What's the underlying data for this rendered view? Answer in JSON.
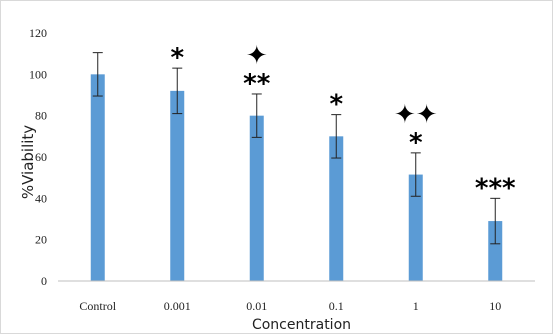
{
  "chart_data": {
    "type": "bar",
    "title": "",
    "xlabel": "Concentration",
    "ylabel": "%Viability",
    "ylim": [
      0,
      120
    ],
    "yticks": [
      0,
      20,
      40,
      60,
      80,
      100,
      120
    ],
    "categories": [
      "Control",
      "0.001",
      "0.01",
      "0.1",
      "1",
      "10"
    ],
    "values": [
      100,
      92,
      80,
      70,
      51.5,
      29
    ],
    "error": [
      10.5,
      11,
      10.5,
      10.5,
      10.5,
      11
    ],
    "significance": [
      "",
      "*",
      "**",
      "*",
      "*",
      "***"
    ],
    "cross_marks": [
      "",
      "",
      "✦",
      "",
      "✦✦",
      ""
    ],
    "bar_color": "#5B9BD5",
    "grid": false
  }
}
